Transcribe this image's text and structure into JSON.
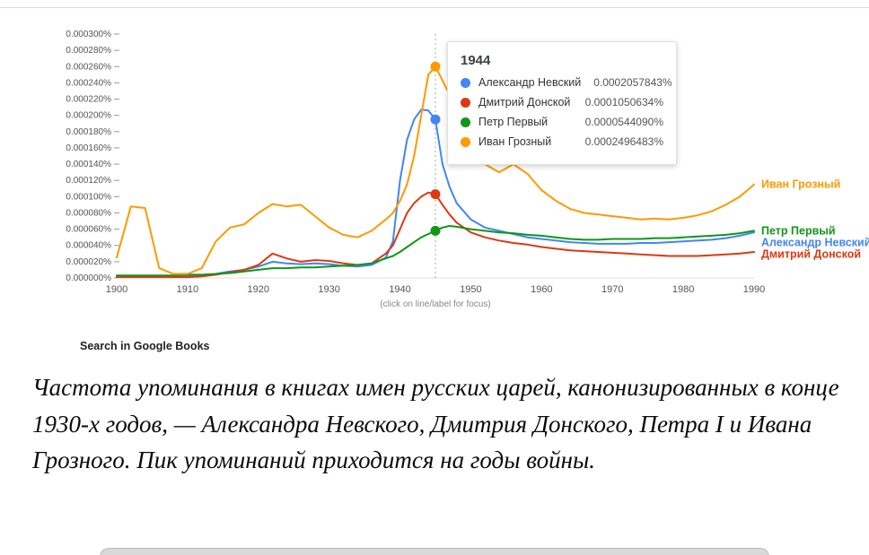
{
  "chart": {
    "tooltip": {
      "year": "1944",
      "rows": [
        {
          "name": "Александр Невский",
          "value": "0.0002057843%",
          "color": "#4285f4"
        },
        {
          "name": "Дмитрий Донской",
          "value": "0.0001050634%",
          "color": "#dc3912"
        },
        {
          "name": "Петр Первый",
          "value": "0.0000544090%",
          "color": "#109618"
        },
        {
          "name": "Иван Грозный",
          "value": "0.0002496483%",
          "color": "#ff9900"
        }
      ]
    },
    "footnote": "(click on line/label for focus)",
    "search_link": "Search in Google Books"
  },
  "chart_data": {
    "type": "line",
    "title": "",
    "xlabel": "",
    "ylabel": "",
    "y_unit": "percent x 1e-6",
    "xlim": [
      1900,
      1990
    ],
    "ylim": [
      0,
      300
    ],
    "xticks": [
      1900,
      1910,
      1920,
      1930,
      1940,
      1950,
      1960,
      1970,
      1980,
      1990
    ],
    "ytick_values": [
      0,
      20,
      40,
      60,
      80,
      100,
      120,
      140,
      160,
      180,
      200,
      220,
      240,
      260,
      280,
      300
    ],
    "ytick_labels": [
      "0.000000%",
      "0.000020%",
      "0.000040%",
      "0.000060%",
      "0.000080%",
      "0.000100%",
      "0.000120%",
      "0.000140%",
      "0.000160%",
      "0.000180%",
      "0.000200%",
      "0.000220%",
      "0.000240%",
      "0.000260%",
      "0.000280%",
      "0.000300%"
    ],
    "cursor_year": 1945,
    "x": [
      1900,
      1902,
      1904,
      1906,
      1908,
      1910,
      1912,
      1914,
      1916,
      1918,
      1920,
      1922,
      1924,
      1926,
      1928,
      1930,
      1932,
      1934,
      1936,
      1938,
      1939,
      1940,
      1941,
      1942,
      1943,
      1944,
      1945,
      1946,
      1947,
      1948,
      1950,
      1952,
      1954,
      1956,
      1958,
      1960,
      1962,
      1964,
      1966,
      1968,
      1970,
      1972,
      1974,
      1976,
      1978,
      1980,
      1982,
      1984,
      1986,
      1988,
      1990
    ],
    "series": [
      {
        "id": "alexander-nevsky",
        "name": "Александр Невский",
        "color": "#4285f4",
        "values": [
          2,
          2,
          2,
          2,
          2,
          2,
          3,
          5,
          8,
          10,
          14,
          20,
          18,
          17,
          18,
          17,
          15,
          14,
          16,
          25,
          45,
          120,
          170,
          195,
          207,
          206,
          195,
          140,
          112,
          92,
          72,
          62,
          58,
          54,
          50,
          48,
          46,
          44,
          43,
          42,
          42,
          42,
          43,
          43,
          44,
          45,
          46,
          47,
          49,
          52,
          56
        ]
      },
      {
        "id": "dmitry-donskoy",
        "name": "Дмитрий Донской",
        "color": "#dc3912",
        "values": [
          1,
          1,
          1,
          1,
          1,
          1,
          2,
          4,
          7,
          10,
          16,
          30,
          24,
          20,
          22,
          21,
          18,
          16,
          18,
          30,
          40,
          60,
          80,
          92,
          100,
          105,
          103,
          90,
          78,
          68,
          56,
          50,
          46,
          43,
          41,
          38,
          36,
          34,
          33,
          32,
          31,
          30,
          29,
          28,
          27,
          27,
          27,
          28,
          29,
          30,
          32
        ]
      },
      {
        "id": "pyotr-pervy",
        "name": "Петр Первый",
        "color": "#109618",
        "values": [
          3,
          3,
          3,
          3,
          3,
          4,
          4,
          5,
          6,
          8,
          10,
          12,
          12,
          13,
          13,
          14,
          15,
          16,
          18,
          24,
          27,
          32,
          38,
          44,
          50,
          54,
          58,
          62,
          64,
          63,
          60,
          58,
          56,
          55,
          53,
          52,
          50,
          48,
          47,
          47,
          48,
          48,
          48,
          49,
          49,
          50,
          51,
          52,
          53,
          55,
          58
        ]
      },
      {
        "id": "ivan-grozny",
        "name": "Иван Грозный",
        "color": "#ff9900",
        "values": [
          25,
          88,
          86,
          12,
          5,
          5,
          12,
          45,
          62,
          66,
          80,
          91,
          88,
          90,
          76,
          62,
          53,
          50,
          58,
          72,
          80,
          95,
          115,
          150,
          200,
          250,
          260,
          243,
          225,
          205,
          160,
          140,
          130,
          140,
          128,
          108,
          95,
          85,
          80,
          78,
          76,
          74,
          72,
          73,
          72,
          74,
          77,
          82,
          90,
          100,
          115
        ]
      }
    ]
  },
  "caption": {
    "text": "Частота упоминания в книгах имен русских царей, канонизированных в конце 1930-х годов, — Александра Невского, Дмитрия Донского, Петра I и Ивана Грозного. Пик упоминаний приходится на годы войны."
  }
}
